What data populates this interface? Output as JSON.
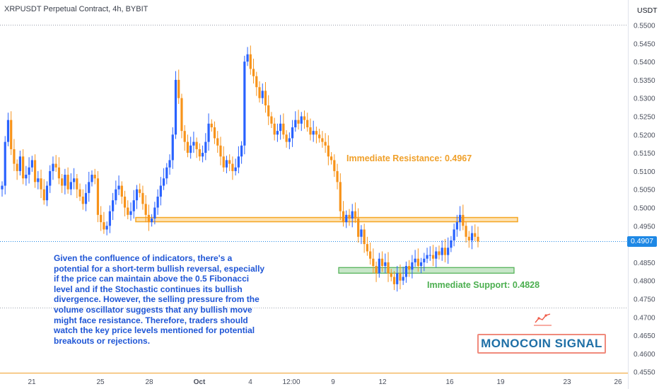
{
  "header": {
    "title": "XRPUSDT Perpetual Contract, 4h, BYBIT",
    "currency": "USDT"
  },
  "price_badge": "0.4907",
  "brand": "MONOCOIN SIGNAL",
  "annotation": "Given the confluence of indicators, there's a potential for a short-term bullish reversal, especially if the price can maintain above the 0.5 Fibonacci level and if the Stochastic continues its bullish divergence. However, the selling pressure from the volume oscillator suggests that any bullish move might face resistance. Therefore, traders should watch the key price levels mentioned for potential breakouts or rejections.",
  "colors": {
    "up": "#2962ff",
    "down": "#f7931a",
    "resistance": "#f5a623",
    "support": "#4caf50",
    "text_note": "#1f56d6",
    "brand": "#1e6fa6",
    "badge": "#1e88e5"
  },
  "icons": [
    "chart-line-icon"
  ],
  "chart_data": {
    "type": "candlestick",
    "timeframe": "4h",
    "ylim": [
      0.455,
      0.55
    ],
    "yticks": [
      "0.5500",
      "0.5450",
      "0.5400",
      "0.5350",
      "0.5300",
      "0.5250",
      "0.5200",
      "0.5150",
      "0.5100",
      "0.5050",
      "0.5000",
      "0.4950",
      "0.4900",
      "0.4850",
      "0.4800",
      "0.4750",
      "0.4700",
      "0.4650",
      "0.4600",
      "0.4550"
    ],
    "xticks": [
      "21",
      "25",
      "28",
      "Oct",
      "4",
      "12:00",
      "9",
      "12",
      "16",
      "19",
      "23",
      "26"
    ],
    "last_price": 0.4907,
    "levels": [
      {
        "name": "Immediate Resistance",
        "label": "Immediate Resistance: 0.4967",
        "value": 0.4967
      },
      {
        "name": "Immediate Support",
        "label": "Immediate Support: 0.4828",
        "value": 0.4828
      }
    ],
    "close": [
      0.506,
      0.518,
      0.524,
      0.516,
      0.512,
      0.51,
      0.514,
      0.508,
      0.509,
      0.511,
      0.513,
      0.507,
      0.508,
      0.505,
      0.502,
      0.506,
      0.51,
      0.512,
      0.511,
      0.508,
      0.506,
      0.509,
      0.505,
      0.507,
      0.508,
      0.505,
      0.503,
      0.501,
      0.504,
      0.507,
      0.509,
      0.508,
      0.498,
      0.496,
      0.494,
      0.495,
      0.499,
      0.502,
      0.505,
      0.506,
      0.503,
      0.5,
      0.498,
      0.499,
      0.502,
      0.505,
      0.504,
      0.501,
      0.498,
      0.496,
      0.497,
      0.5,
      0.503,
      0.506,
      0.508,
      0.511,
      0.513,
      0.52,
      0.535,
      0.53,
      0.521,
      0.518,
      0.515,
      0.517,
      0.518,
      0.516,
      0.514,
      0.515,
      0.518,
      0.523,
      0.522,
      0.519,
      0.517,
      0.514,
      0.511,
      0.513,
      0.512,
      0.51,
      0.511,
      0.514,
      0.517,
      0.54,
      0.542,
      0.538,
      0.536,
      0.533,
      0.53,
      0.532,
      0.528,
      0.525,
      0.523,
      0.52,
      0.521,
      0.523,
      0.52,
      0.518,
      0.519,
      0.522,
      0.524,
      0.523,
      0.525,
      0.524,
      0.522,
      0.52,
      0.521,
      0.52,
      0.519,
      0.518,
      0.517,
      0.514,
      0.513,
      0.51,
      0.507,
      0.499,
      0.496,
      0.498,
      0.497,
      0.499,
      0.497,
      0.492,
      0.494,
      0.49,
      0.488,
      0.486,
      0.484,
      0.482,
      0.486,
      0.484,
      0.485,
      0.482,
      0.481,
      0.479,
      0.482,
      0.48,
      0.481,
      0.484,
      0.483,
      0.485,
      0.486,
      0.484,
      0.485,
      0.486,
      0.487,
      0.487,
      0.486,
      0.488,
      0.487,
      0.489,
      0.487,
      0.489,
      0.491,
      0.494,
      0.496,
      0.498,
      0.495,
      0.492,
      0.491,
      0.493,
      0.492,
      0.4907
    ]
  }
}
